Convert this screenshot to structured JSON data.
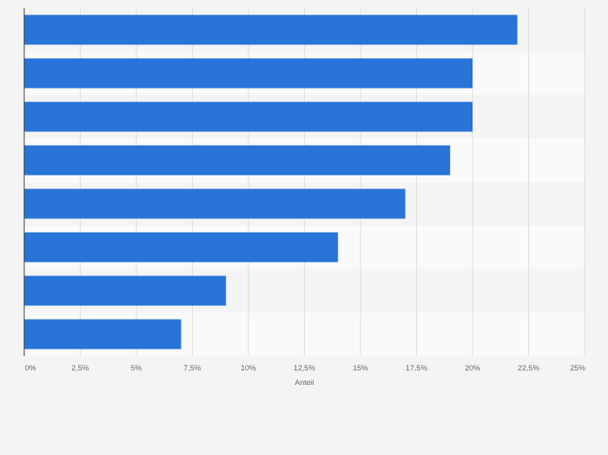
{
  "chart_data": {
    "type": "bar",
    "orientation": "horizontal",
    "categories": [
      "",
      "",
      "",
      "",
      "",
      "",
      "",
      ""
    ],
    "values": [
      22,
      20,
      20,
      19,
      17,
      14,
      9,
      7
    ],
    "unit": "%",
    "xlabel": "Anteil",
    "xlim": [
      0,
      25
    ],
    "x_ticks": [
      0,
      2.5,
      5,
      7.5,
      10,
      12.5,
      15,
      17.5,
      20,
      22.5,
      25
    ],
    "x_tick_labels": [
      "0%",
      "2,5%",
      "5%",
      "7,5%",
      "10%",
      "12,5%",
      "15%",
      "17,5%",
      "20%",
      "22,5%",
      "25%"
    ],
    "grid": true,
    "bar_color": "#2874d8",
    "band_colors": [
      "#f4f4f4",
      "#fafafa"
    ]
  }
}
